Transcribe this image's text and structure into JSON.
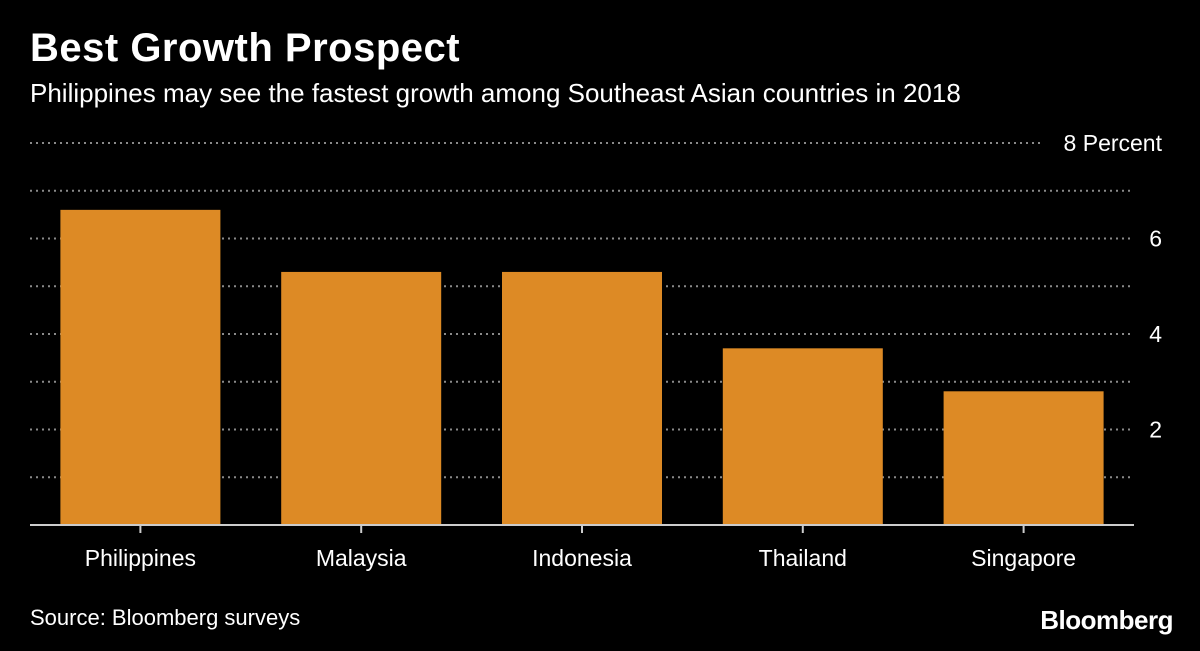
{
  "header": {
    "title": "Best Growth Prospect",
    "subtitle": "Philippines may see the fastest growth among Southeast Asian countries in 2018"
  },
  "chart_data": {
    "type": "bar",
    "categories": [
      "Philippines",
      "Malaysia",
      "Indonesia",
      "Thailand",
      "Singapore"
    ],
    "values": [
      6.6,
      5.3,
      5.3,
      3.7,
      2.8
    ],
    "ylim": [
      0,
      8
    ],
    "yticks": [
      2,
      4,
      6,
      8
    ],
    "ytick_labels": [
      "2",
      "4",
      "6",
      "8 Percent"
    ],
    "ylabel": "",
    "xlabel": "",
    "grid": "dotted horizontal",
    "y_axis_side": "right",
    "colors": {
      "bar": "#dd8a25",
      "background": "#000000",
      "grid": "#8a8a8a",
      "text": "#ffffff"
    }
  },
  "footer": {
    "source": "Source: Bloomberg surveys",
    "brand": "Bloomberg"
  }
}
